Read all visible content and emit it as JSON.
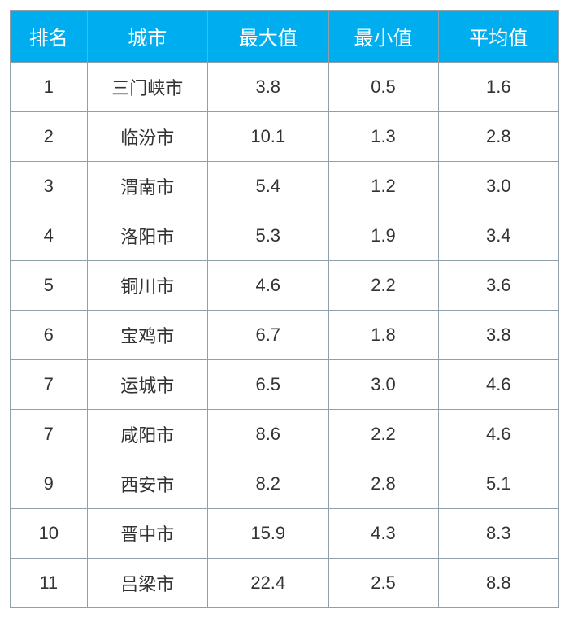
{
  "table": {
    "type": "table",
    "header_bg": "#00aeef",
    "header_fg": "#ffffff",
    "cell_bg": "#ffffff",
    "cell_fg": "#333333",
    "border_color": "#8fa0a8",
    "header_fontsize": 24,
    "cell_fontsize": 22,
    "columns": [
      {
        "key": "rank",
        "label": "排名",
        "width_pct": 14,
        "align": "center"
      },
      {
        "key": "city",
        "label": "城市",
        "width_pct": 22,
        "align": "center"
      },
      {
        "key": "max",
        "label": "最大值",
        "width_pct": 22,
        "align": "center"
      },
      {
        "key": "min",
        "label": "最小值",
        "width_pct": 20,
        "align": "center"
      },
      {
        "key": "avg",
        "label": "平均值",
        "width_pct": 22,
        "align": "center"
      }
    ],
    "rows": [
      {
        "rank": "1",
        "city": "三门峡市",
        "max": "3.8",
        "min": "0.5",
        "avg": "1.6"
      },
      {
        "rank": "2",
        "city": "临汾市",
        "max": "10.1",
        "min": "1.3",
        "avg": "2.8"
      },
      {
        "rank": "3",
        "city": "渭南市",
        "max": "5.4",
        "min": "1.2",
        "avg": "3.0"
      },
      {
        "rank": "4",
        "city": "洛阳市",
        "max": "5.3",
        "min": "1.9",
        "avg": "3.4"
      },
      {
        "rank": "5",
        "city": "铜川市",
        "max": "4.6",
        "min": "2.2",
        "avg": "3.6"
      },
      {
        "rank": "6",
        "city": "宝鸡市",
        "max": "6.7",
        "min": "1.8",
        "avg": "3.8"
      },
      {
        "rank": "7",
        "city": "运城市",
        "max": "6.5",
        "min": "3.0",
        "avg": "4.6"
      },
      {
        "rank": "7",
        "city": "咸阳市",
        "max": "8.6",
        "min": "2.2",
        "avg": "4.6"
      },
      {
        "rank": "9",
        "city": "西安市",
        "max": "8.2",
        "min": "2.8",
        "avg": "5.1"
      },
      {
        "rank": "10",
        "city": "晋中市",
        "max": "15.9",
        "min": "4.3",
        "avg": "8.3"
      },
      {
        "rank": "11",
        "city": "吕梁市",
        "max": "22.4",
        "min": "2.5",
        "avg": "8.8"
      }
    ]
  }
}
